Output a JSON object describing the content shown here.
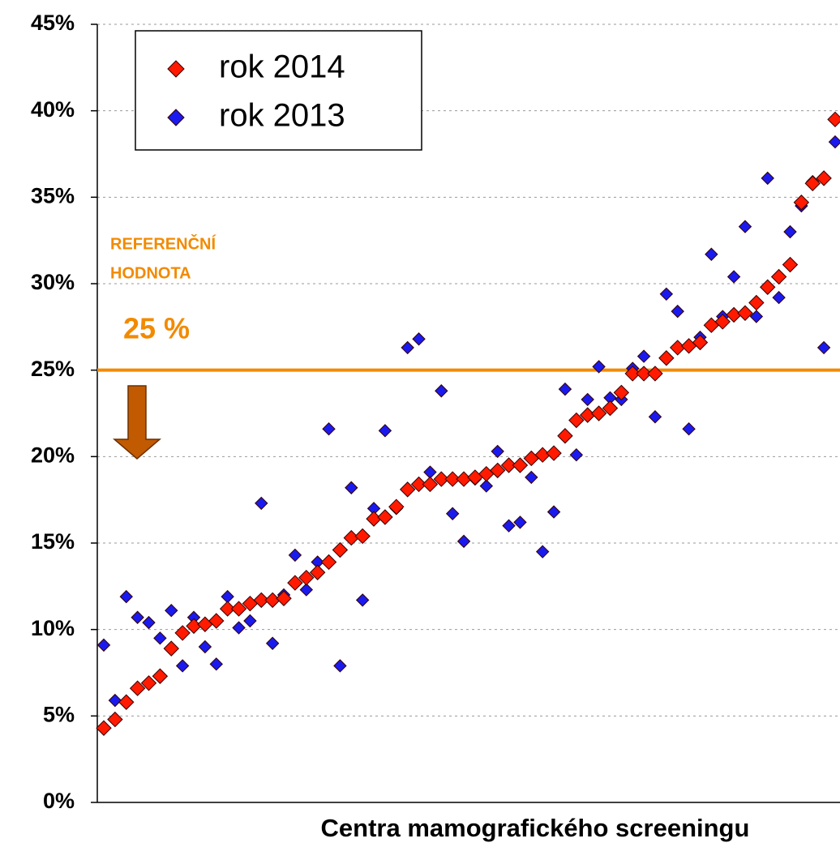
{
  "chart_data": {
    "type": "scatter",
    "x_label": "Centra mamografického screeningu",
    "categories": [
      null,
      null,
      null,
      null,
      null,
      null,
      null,
      null,
      null,
      null,
      null,
      null,
      null,
      null,
      null,
      null,
      null,
      null,
      null,
      null,
      null,
      null,
      null,
      null,
      null,
      null,
      null,
      null,
      null,
      null,
      null,
      null,
      null,
      null,
      null,
      null,
      null,
      null,
      null,
      null,
      null,
      null,
      null,
      null,
      null,
      null,
      null,
      null,
      null,
      null,
      null,
      null,
      null,
      null,
      null,
      null,
      null,
      null,
      null,
      null,
      null,
      null,
      null,
      null,
      null,
      null
    ],
    "series": [
      {
        "name": "rok 2014",
        "color": "#ff1a00",
        "values": [
          4.3,
          4.8,
          5.8,
          6.6,
          6.9,
          7.3,
          8.9,
          9.8,
          10.2,
          10.3,
          10.5,
          11.2,
          11.2,
          11.5,
          11.7,
          11.7,
          11.8,
          12.7,
          13.0,
          13.3,
          13.9,
          14.6,
          15.3,
          15.4,
          16.4,
          16.5,
          17.1,
          18.1,
          18.4,
          18.4,
          18.7,
          18.7,
          18.7,
          18.8,
          19.0,
          19.2,
          19.5,
          19.5,
          19.9,
          20.1,
          20.2,
          21.2,
          22.1,
          22.4,
          22.5,
          22.8,
          23.7,
          24.8,
          24.8,
          24.8,
          25.7,
          26.3,
          26.4,
          26.6,
          27.6,
          27.8,
          28.2,
          28.3,
          28.9,
          29.8,
          30.4,
          31.1,
          34.7,
          35.8,
          36.1,
          39.5
        ]
      },
      {
        "name": "rok 2013",
        "color": "#1a1aee",
        "values": [
          9.1,
          5.9,
          11.9,
          10.7,
          10.4,
          9.5,
          11.1,
          7.9,
          10.7,
          9.0,
          8.0,
          11.9,
          10.1,
          10.5,
          17.3,
          9.2,
          12.0,
          14.3,
          12.3,
          13.9,
          21.6,
          7.9,
          18.2,
          11.7,
          17.0,
          21.5,
          17.0,
          26.3,
          26.8,
          19.1,
          23.8,
          16.7,
          15.1,
          18.7,
          18.3,
          20.3,
          16.0,
          16.2,
          18.8,
          14.5,
          16.8,
          23.9,
          20.1,
          23.3,
          25.2,
          23.4,
          23.3,
          25.1,
          25.8,
          22.3,
          29.4,
          28.4,
          21.6,
          26.9,
          31.7,
          28.1,
          30.4,
          33.3,
          28.1,
          36.1,
          29.2,
          33.0,
          34.5,
          35.9,
          26.3,
          38.2
        ]
      }
    ],
    "ylim": [
      0,
      45
    ],
    "yticks": [
      {
        "value": 0,
        "label": "0%"
      },
      {
        "value": 5,
        "label": "5%"
      },
      {
        "value": 10,
        "label": "10%"
      },
      {
        "value": 15,
        "label": "15%"
      },
      {
        "value": 20,
        "label": "20%"
      },
      {
        "value": 25,
        "label": "25%"
      },
      {
        "value": 30,
        "label": "30%"
      },
      {
        "value": 35,
        "label": "35%"
      },
      {
        "value": 40,
        "label": "40%"
      },
      {
        "value": 45,
        "label": "45%"
      }
    ],
    "grid": true,
    "legend": "top-left",
    "reference": {
      "value": 25,
      "label": "25 %",
      "title": [
        "REFERENČNÍ",
        "HODNOTA"
      ],
      "color": "#f28a00"
    }
  }
}
